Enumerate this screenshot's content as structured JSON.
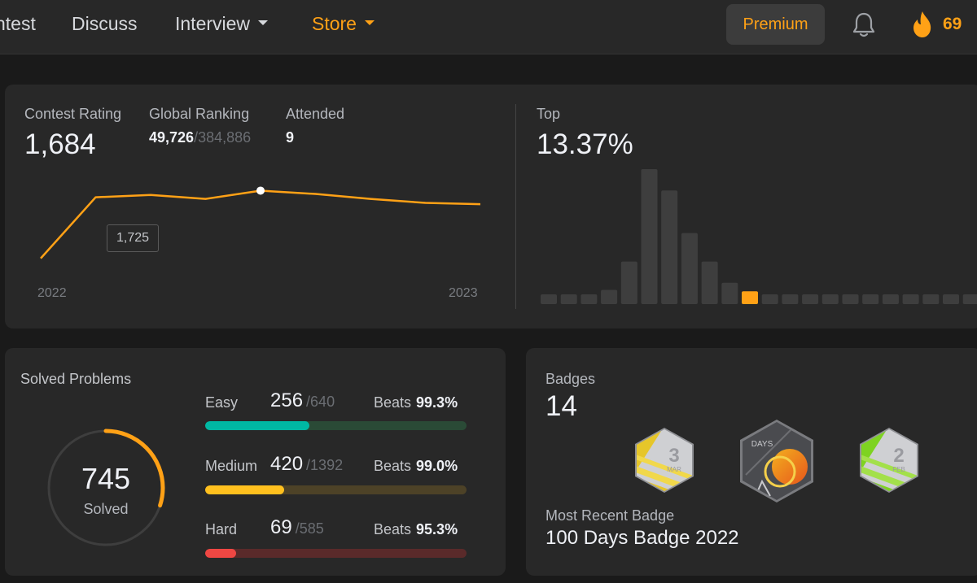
{
  "nav": {
    "items": [
      {
        "label": "ntest",
        "caret": false
      },
      {
        "label": "Discuss",
        "caret": false
      },
      {
        "label": "Interview",
        "caret": true
      },
      {
        "label": "Store",
        "caret": true
      }
    ],
    "premium_label": "Premium",
    "streak_count": "69",
    "accent": "#ffa116"
  },
  "rating": {
    "contest_rating_label": "Contest Rating",
    "contest_rating_value": "1,684",
    "global_ranking_label": "Global Ranking",
    "global_ranking_value": "49,726",
    "global_ranking_total": "/384,886",
    "attended_label": "Attended",
    "attended_value": "9",
    "tooltip_value": "1,725",
    "x_start": "2022",
    "x_end": "2023",
    "top_label": "Top",
    "top_value": "13.37%"
  },
  "chart_data": [
    {
      "type": "line",
      "x": [
        "2022",
        "",
        "",
        "",
        "",
        "",
        "",
        "",
        "2023"
      ],
      "y": [
        1520,
        1705,
        1712,
        1700,
        1725,
        1715,
        1700,
        1688,
        1684
      ],
      "highlight_index": 4,
      "x_tick_labels": [
        "2022",
        "2023"
      ],
      "ylim": [
        1480,
        1800
      ],
      "color": "#ffa116"
    },
    {
      "type": "bar",
      "values": [
        1,
        1,
        1,
        2,
        6,
        19,
        16,
        10,
        6,
        3,
        1.8,
        1.2,
        1,
        1,
        1,
        1,
        1,
        1,
        1,
        1,
        1,
        1
      ],
      "highlight_index": 10,
      "bar_color": "#3e3e3e",
      "highlight_color": "#ffa116"
    }
  ],
  "solved": {
    "title": "Solved Problems",
    "total": "745",
    "total_label": "Solved",
    "ring_fraction": 0.3,
    "ring_color": "#ffa116",
    "difficulties": [
      {
        "name": "Easy",
        "count": "256",
        "total": "/640",
        "beats_label": "Beats",
        "beats": "99.3%",
        "fraction": 0.4,
        "color": "#00b8a3",
        "track": "#2a4a36"
      },
      {
        "name": "Medium",
        "count": "420",
        "total": "/1392",
        "beats_label": "Beats",
        "beats": "99.0%",
        "fraction": 0.302,
        "color": "#ffc01e",
        "track": "#4d4227"
      },
      {
        "name": "Hard",
        "count": "69",
        "total": "/585",
        "beats_label": "Beats",
        "beats": "95.3%",
        "fraction": 0.118,
        "color": "#ef4743",
        "track": "#5a2a2a"
      }
    ]
  },
  "badges": {
    "title": "Badges",
    "count": "14",
    "items": [
      {
        "icon": "march-badge-icon",
        "num": "3",
        "sub": "MAR"
      },
      {
        "icon": "days-badge-icon",
        "num": "",
        "sub": "DAYS"
      },
      {
        "icon": "february-badge-icon",
        "num": "2",
        "sub": "FEB"
      }
    ],
    "recent_label": "Most Recent Badge",
    "recent_value": "100 Days Badge 2022"
  }
}
